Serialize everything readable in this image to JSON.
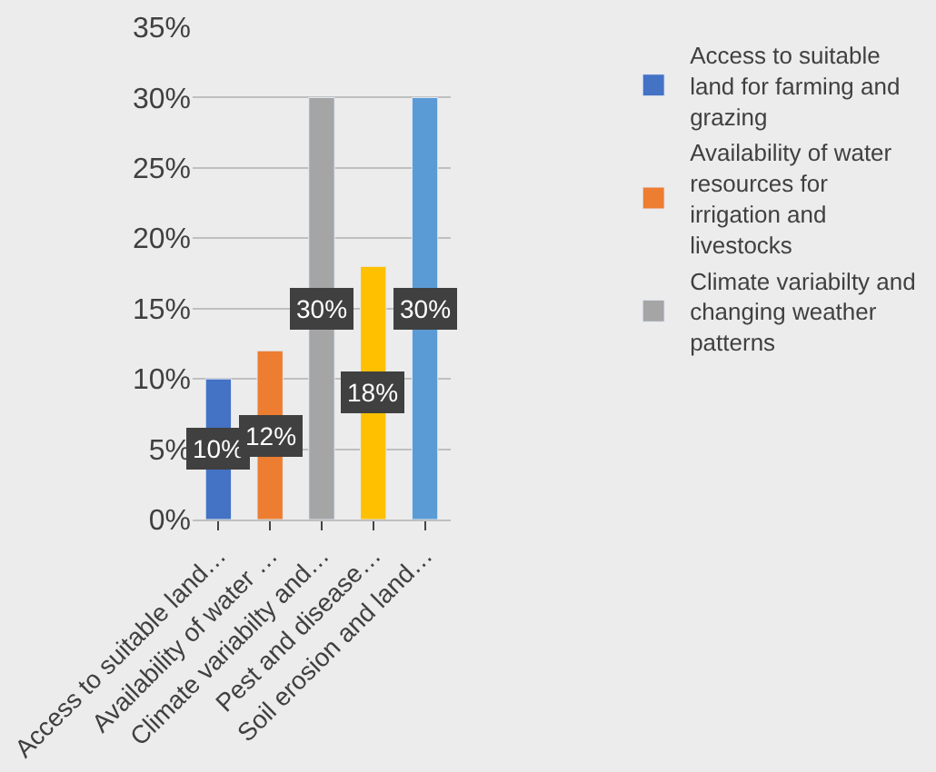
{
  "chart_data": {
    "type": "bar",
    "categories": [
      "Access to suitable land…",
      "Availability of water …",
      "Climate variabilty and…",
      "Pest and disease…",
      "Soil erosion and land…"
    ],
    "series": [
      {
        "name": "Access to suitable land for farming and grazing",
        "color": "#4472c4",
        "values": [
          10,
          null,
          null,
          null,
          null
        ],
        "value_labels": [
          "10%",
          null,
          null,
          null,
          null
        ]
      },
      {
        "name": "Availability of water resources for irrigation and livestocks",
        "color": "#ed7d31",
        "values": [
          null,
          12,
          null,
          null,
          null
        ],
        "value_labels": [
          null,
          "12%",
          null,
          null,
          null
        ]
      },
      {
        "name": "Climate variabilty and changing weather patterns",
        "color": "#a5a5a5",
        "values": [
          null,
          null,
          30,
          null,
          null
        ],
        "value_labels": [
          null,
          null,
          "30%",
          null,
          null
        ]
      },
      {
        "color": "#ffc000",
        "values": [
          null,
          null,
          null,
          18,
          null
        ],
        "value_labels": [
          null,
          null,
          null,
          "18%",
          null
        ]
      },
      {
        "color": "#5b9bd5",
        "values": [
          null,
          null,
          null,
          null,
          30
        ],
        "value_labels": [
          null,
          null,
          null,
          null,
          "30%"
        ]
      }
    ],
    "ylim": [
      0,
      35
    ],
    "yticks": [
      {
        "value": 0,
        "label": "0%"
      },
      {
        "value": 5,
        "label": "5%"
      },
      {
        "value": 10,
        "label": "10%"
      },
      {
        "value": 15,
        "label": "15%"
      },
      {
        "value": 20,
        "label": "20%"
      },
      {
        "value": 25,
        "label": "25%"
      },
      {
        "value": 30,
        "label": "30%"
      },
      {
        "value": 35,
        "label": "35%"
      }
    ],
    "grid": "y",
    "legend": "right"
  }
}
